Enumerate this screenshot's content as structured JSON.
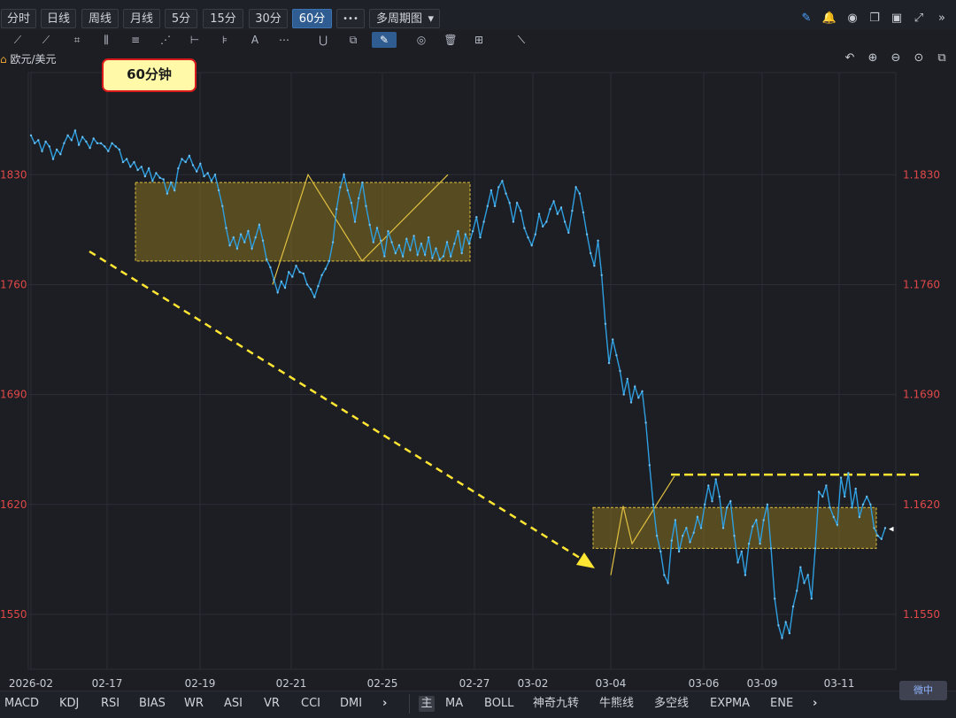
{
  "toolbar": {
    "periods": [
      "分时",
      "日线",
      "周线",
      "月线",
      "5分",
      "15分",
      "30分",
      "60分"
    ],
    "active_period": "60分",
    "more": "•••",
    "multi_period": "多周期图",
    "multi_period_arrow": "▾"
  },
  "right_icons": [
    "pen-icon",
    "bell-icon",
    "camera-icon",
    "copy-icon",
    "monitor-icon",
    "expand-icon",
    "collapse-icon"
  ],
  "right_icon_glyphs": [
    "✎",
    "🔔",
    "◉",
    "❐",
    "▣",
    "⤢",
    "»"
  ],
  "drawing_tools": [
    "line-tool-icon",
    "multi-line-icon",
    "crop-icon",
    "bars-icon",
    "levels-icon",
    "fan-icon",
    "measure-icon",
    "fib-icon",
    "text-tool-icon",
    "more-tools-icon",
    "magnet-icon",
    "layers-icon",
    "pencil-icon",
    "eye-icon",
    "trash-icon",
    "grid-icon",
    "ruler-icon"
  ],
  "drawing_tool_glyphs": [
    "⟋",
    "⟋",
    "⌗",
    "⫼",
    "≡",
    "⋰",
    "⊢",
    "⊧",
    "A",
    "⋯",
    "⋃",
    "⧉",
    "✎",
    "◎",
    "🗑",
    "⊞",
    "⟍"
  ],
  "symbol": {
    "arrow": "⌂",
    "name": "欧元/美元"
  },
  "chart_controls_glyphs": [
    "↶",
    "⊕",
    "⊖",
    "⊙",
    "⧉"
  ],
  "chart_data": {
    "type": "line",
    "title": "",
    "series": [
      {
        "values": [
          1.1855,
          1.185,
          1.1852,
          1.1845,
          1.1851,
          1.1848,
          1.184,
          1.1846,
          1.1843,
          1.185,
          1.1855,
          1.1852,
          1.1858,
          1.1849,
          1.1854,
          1.1851,
          1.1847,
          1.1853,
          1.185,
          1.185,
          1.1848,
          1.1845,
          1.185,
          1.1848,
          1.1846,
          1.1838,
          1.184,
          1.1835,
          1.1838,
          1.1833,
          1.1835,
          1.1829,
          1.1834,
          1.1826,
          1.1831,
          1.1828,
          1.1827,
          1.1818,
          1.1825,
          1.182,
          1.1834,
          1.184,
          1.1838,
          1.1842,
          1.1836,
          1.1832,
          1.1837,
          1.1829,
          1.1831,
          1.1826,
          1.183,
          1.182,
          1.181,
          1.1796,
          1.1785,
          1.179,
          1.1783,
          1.1792,
          1.1787,
          1.1794,
          1.1783,
          1.179,
          1.1798,
          1.1788,
          1.1776,
          1.1771,
          1.1763,
          1.1755,
          1.1762,
          1.1758,
          1.1768,
          1.1765,
          1.1772,
          1.1768,
          1.1767,
          1.176,
          1.1757,
          1.1752,
          1.1759,
          1.1766,
          1.177,
          1.1775,
          1.1787,
          1.1808,
          1.1822,
          1.183,
          1.182,
          1.1812,
          1.18,
          1.1815,
          1.1825,
          1.181,
          1.1798,
          1.1787,
          1.1796,
          1.1788,
          1.1778,
          1.1794,
          1.1787,
          1.178,
          1.1785,
          1.1778,
          1.1789,
          1.1782,
          1.1791,
          1.1779,
          1.1786,
          1.1779,
          1.179,
          1.1777,
          1.1783,
          1.1776,
          1.1778,
          1.1787,
          1.1778,
          1.1786,
          1.1794,
          1.178,
          1.1792,
          1.1786,
          1.1794,
          1.1803,
          1.179,
          1.18,
          1.181,
          1.182,
          1.181,
          1.1822,
          1.1826,
          1.1818,
          1.1812,
          1.18,
          1.1812,
          1.1807,
          1.1796,
          1.179,
          1.1785,
          1.1792,
          1.1805,
          1.1797,
          1.18,
          1.1808,
          1.1813,
          1.1805,
          1.1809,
          1.18,
          1.1793,
          1.1807,
          1.1822,
          1.1818,
          1.1806,
          1.1792,
          1.178,
          1.1772,
          1.1788,
          1.1766,
          1.1735,
          1.171,
          1.1725,
          1.1715,
          1.1705,
          1.169,
          1.17,
          1.1685,
          1.1695,
          1.1688,
          1.1692,
          1.1672,
          1.1645,
          1.162,
          1.16,
          1.159,
          1.1575,
          1.157,
          1.1597,
          1.161,
          1.159,
          1.16,
          1.1605,
          1.1596,
          1.1602,
          1.1612,
          1.1605,
          1.162,
          1.1632,
          1.1622,
          1.1636,
          1.1625,
          1.1605,
          1.1618,
          1.1622,
          1.16,
          1.1583,
          1.159,
          1.1575,
          1.1595,
          1.1606,
          1.161,
          1.1595,
          1.161,
          1.162,
          1.1592,
          1.156,
          1.1543,
          1.1535,
          1.1545,
          1.1538,
          1.1555,
          1.1565,
          1.158,
          1.157,
          1.1575,
          1.156,
          1.1592,
          1.1628,
          1.1625,
          1.1632,
          1.1618,
          1.1612,
          1.1607,
          1.1637,
          1.1625,
          1.164,
          1.1618,
          1.163,
          1.1612,
          1.162,
          1.1625,
          1.162,
          1.1605,
          1.16,
          1.1598,
          1.1605
        ]
      }
    ],
    "x_ticks": [
      "2026-02",
      "02-17",
      "02-19",
      "02-21",
      "02-25",
      "02-27",
      "03-02",
      "03-04",
      "03-06",
      "03-09",
      "03-11"
    ],
    "y_ticks": [
      "1.1830",
      "1.1760",
      "1.1690",
      "1.1620",
      "1.1550"
    ],
    "y_ticks_left": [
      "1830",
      "1760",
      "1690",
      "1620",
      "1550"
    ],
    "ylim": [
      1.1515,
      1.1895
    ],
    "last_marker": "◂",
    "grid": true,
    "annotation_badge": "60分钟",
    "accent_colors": {
      "line": "#2e9fe0",
      "box": "#e0c040",
      "trend": "#ffe633"
    }
  },
  "bottom_indicators_left": [
    "MACD",
    "KDJ",
    "RSI",
    "BIAS",
    "WR",
    "ASI",
    "VR",
    "CCI",
    "DMI"
  ],
  "bottom_indicators_right": [
    "MA",
    "BOLL",
    "神奇九转",
    "牛熊线",
    "多空线",
    "EXPMA",
    "ENE"
  ],
  "bottom_main": "主",
  "bottom_more": "›",
  "corner_badge": "微中"
}
